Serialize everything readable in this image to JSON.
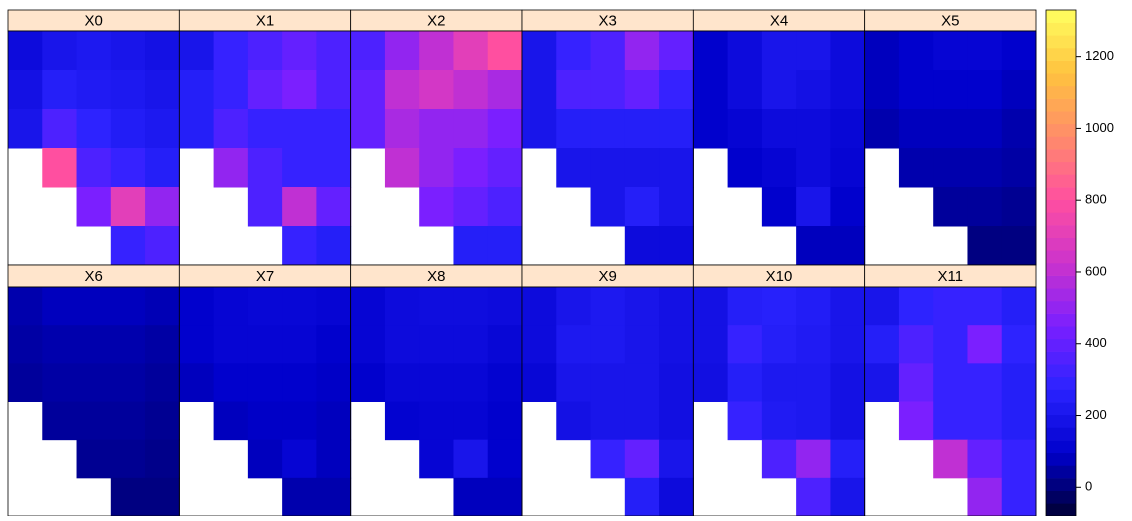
{
  "chart_data": {
    "type": "raster",
    "zlim": [
      -80,
      1330
    ],
    "zticks": [
      0,
      200,
      400,
      600,
      800,
      1000,
      1200
    ],
    "colors": [
      "#000033",
      "#0000cc",
      "#2a23ff",
      "#7a1fff",
      "#cc33cc",
      "#ff4fa0",
      "#ff8c6a",
      "#ffc23f",
      "#ffff60"
    ],
    "panels": [
      {
        "name": "X0",
        "values": [
          [
            150,
            200,
            220,
            200,
            180
          ],
          [
            180,
            250,
            230,
            220,
            200
          ],
          [
            200,
            350,
            280,
            240,
            220
          ],
          [
            null,
            800,
            350,
            300,
            250
          ],
          [
            null,
            null,
            450,
            700,
            500
          ],
          [
            null,
            null,
            null,
            300,
            350
          ]
        ]
      },
      {
        "name": "X1",
        "values": [
          [
            200,
            300,
            350,
            400,
            350
          ],
          [
            250,
            300,
            400,
            450,
            350
          ],
          [
            250,
            350,
            300,
            300,
            300
          ],
          [
            null,
            500,
            350,
            300,
            300
          ],
          [
            null,
            null,
            350,
            600,
            400
          ],
          [
            null,
            null,
            null,
            300,
            250
          ]
        ]
      },
      {
        "name": "X2",
        "values": [
          [
            350,
            500,
            600,
            700,
            800
          ],
          [
            400,
            600,
            650,
            600,
            550
          ],
          [
            400,
            550,
            500,
            500,
            450
          ],
          [
            null,
            600,
            500,
            450,
            400
          ],
          [
            null,
            null,
            450,
            400,
            350
          ],
          [
            null,
            null,
            null,
            250,
            250
          ]
        ]
      },
      {
        "name": "X3",
        "values": [
          [
            200,
            300,
            350,
            500,
            400
          ],
          [
            200,
            350,
            350,
            400,
            300
          ],
          [
            200,
            250,
            250,
            250,
            250
          ],
          [
            null,
            200,
            200,
            200,
            200
          ],
          [
            null,
            null,
            200,
            250,
            200
          ],
          [
            null,
            null,
            null,
            150,
            150
          ]
        ]
      },
      {
        "name": "X4",
        "values": [
          [
            100,
            150,
            200,
            200,
            150
          ],
          [
            100,
            150,
            200,
            180,
            150
          ],
          [
            100,
            120,
            150,
            150,
            130
          ],
          [
            null,
            100,
            120,
            150,
            120
          ],
          [
            null,
            null,
            100,
            200,
            100
          ],
          [
            null,
            null,
            null,
            80,
            80
          ]
        ]
      },
      {
        "name": "X5",
        "values": [
          [
            80,
            100,
            120,
            120,
            100
          ],
          [
            80,
            100,
            100,
            100,
            80
          ],
          [
            60,
            80,
            80,
            80,
            60
          ],
          [
            null,
            60,
            60,
            60,
            50
          ],
          [
            null,
            null,
            40,
            40,
            30
          ],
          [
            null,
            null,
            null,
            10,
            10
          ]
        ]
      },
      {
        "name": "X6",
        "values": [
          [
            60,
            80,
            80,
            80,
            70
          ],
          [
            50,
            60,
            60,
            60,
            50
          ],
          [
            40,
            50,
            50,
            50,
            40
          ],
          [
            null,
            40,
            40,
            40,
            30
          ],
          [
            null,
            null,
            30,
            30,
            20
          ],
          [
            null,
            null,
            null,
            10,
            10
          ]
        ]
      },
      {
        "name": "X7",
        "values": [
          [
            100,
            120,
            130,
            130,
            120
          ],
          [
            100,
            120,
            120,
            120,
            100
          ],
          [
            80,
            100,
            100,
            100,
            90
          ],
          [
            null,
            80,
            90,
            90,
            80
          ],
          [
            null,
            null,
            80,
            120,
            80
          ],
          [
            null,
            null,
            null,
            60,
            60
          ]
        ]
      },
      {
        "name": "X8",
        "values": [
          [
            120,
            150,
            160,
            160,
            150
          ],
          [
            120,
            150,
            150,
            150,
            130
          ],
          [
            100,
            130,
            130,
            130,
            110
          ],
          [
            null,
            110,
            120,
            120,
            100
          ],
          [
            null,
            null,
            120,
            200,
            100
          ],
          [
            null,
            null,
            null,
            80,
            80
          ]
        ]
      },
      {
        "name": "X9",
        "values": [
          [
            150,
            200,
            220,
            200,
            180
          ],
          [
            150,
            220,
            220,
            200,
            180
          ],
          [
            130,
            200,
            200,
            200,
            170
          ],
          [
            null,
            180,
            200,
            200,
            170
          ],
          [
            null,
            null,
            300,
            400,
            200
          ],
          [
            null,
            null,
            null,
            250,
            150
          ]
        ]
      },
      {
        "name": "X10",
        "values": [
          [
            180,
            250,
            260,
            240,
            200
          ],
          [
            180,
            300,
            250,
            230,
            200
          ],
          [
            170,
            250,
            220,
            220,
            180
          ],
          [
            null,
            300,
            230,
            220,
            180
          ],
          [
            null,
            null,
            350,
            500,
            250
          ],
          [
            null,
            null,
            null,
            350,
            200
          ]
        ]
      },
      {
        "name": "X11",
        "values": [
          [
            200,
            280,
            300,
            300,
            250
          ],
          [
            250,
            350,
            300,
            450,
            280
          ],
          [
            200,
            400,
            300,
            300,
            250
          ],
          [
            null,
            450,
            300,
            300,
            250
          ],
          [
            null,
            null,
            600,
            400,
            300
          ],
          [
            null,
            null,
            null,
            500,
            300
          ]
        ]
      }
    ]
  }
}
